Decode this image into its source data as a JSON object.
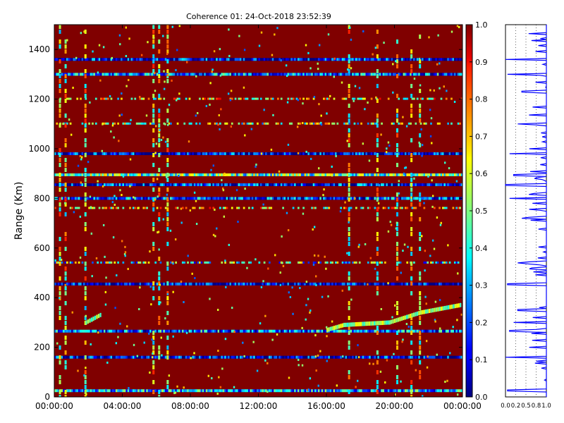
{
  "chart_data": [
    {
      "type": "heatmap",
      "title": "Coherence 01: 24-Oct-2018 23:52:39",
      "xlabel": "",
      "ylabel": "Range (Km)",
      "xlim": [
        "00:00:00",
        "24:00:00"
      ],
      "ylim": [
        0,
        1500
      ],
      "x_tick_labels": [
        "00:00:00",
        "04:00:00",
        "08:00:00",
        "12:00:00",
        "16:00:00",
        "20:00:00",
        "00:00:00"
      ],
      "y_ticks": [
        0,
        200,
        400,
        600,
        800,
        1000,
        1200,
        1400
      ],
      "background_value": 1.0,
      "colormap": "jet",
      "colorbar": {
        "min": 0.0,
        "max": 1.0,
        "ticks": [
          "0.0",
          "0.1",
          "0.2",
          "0.3",
          "0.4",
          "0.5",
          "0.6",
          "0.7",
          "0.8",
          "0.9",
          "1.0"
        ]
      },
      "low_coherence_range_bands_km": [
        {
          "range": 1360,
          "value": 0.12
        },
        {
          "range": 1300,
          "value": 0.25
        },
        {
          "range": 980,
          "value": 0.1
        },
        {
          "range": 895,
          "value": 0.45
        },
        {
          "range": 855,
          "value": 0.15
        },
        {
          "range": 800,
          "value": 0.2
        },
        {
          "range": 455,
          "value": 0.08
        },
        {
          "range": 265,
          "value": 0.25
        },
        {
          "range": 160,
          "value": 0.1
        },
        {
          "range": 25,
          "value": 0.3
        }
      ],
      "partial_range_bands_km": [
        {
          "range": 1100,
          "value": 0.5
        },
        {
          "range": 1200,
          "value": 0.6
        },
        {
          "range": 540,
          "value": 0.4
        },
        {
          "range": 760,
          "value": 0.6
        }
      ],
      "low_coherence_time_columns": [
        "00:20",
        "00:40",
        "01:50",
        "05:50",
        "06:10",
        "06:40",
        "17:20",
        "19:00",
        "20:10",
        "21:00",
        "21:30"
      ],
      "tracking_echo": [
        {
          "time": "01:50",
          "range": 300
        },
        {
          "time": "02:40",
          "range": 330
        },
        {
          "time": "16:00",
          "range": 270
        },
        {
          "time": "17:00",
          "range": 290
        },
        {
          "time": "19:40",
          "range": 300
        },
        {
          "time": "21:30",
          "range": 340
        },
        {
          "time": "23:50",
          "range": 370
        }
      ]
    },
    {
      "type": "line",
      "title": "",
      "xlabel": "",
      "ylabel": "",
      "xlim": [
        0,
        1
      ],
      "ylim": [
        0,
        1500
      ],
      "x_tick_labels": [
        "0.0",
        "0.2",
        "0.5",
        "0.8",
        "1.0"
      ],
      "profile_dips": [
        {
          "range": 1360,
          "value": 0.0
        },
        {
          "range": 1300,
          "value": 0.05
        },
        {
          "range": 1230,
          "value": 0.4
        },
        {
          "range": 1100,
          "value": 0.3
        },
        {
          "range": 980,
          "value": 0.1
        },
        {
          "range": 895,
          "value": 0.2
        },
        {
          "range": 855,
          "value": 0.0
        },
        {
          "range": 800,
          "value": 0.1
        },
        {
          "range": 720,
          "value": 0.4
        },
        {
          "range": 540,
          "value": 0.3
        },
        {
          "range": 455,
          "value": 0.05
        },
        {
          "range": 350,
          "value": 0.3
        },
        {
          "range": 300,
          "value": 0.2
        },
        {
          "range": 265,
          "value": 0.1
        },
        {
          "range": 160,
          "value": 0.0
        },
        {
          "range": 25,
          "value": 0.05
        }
      ]
    }
  ]
}
